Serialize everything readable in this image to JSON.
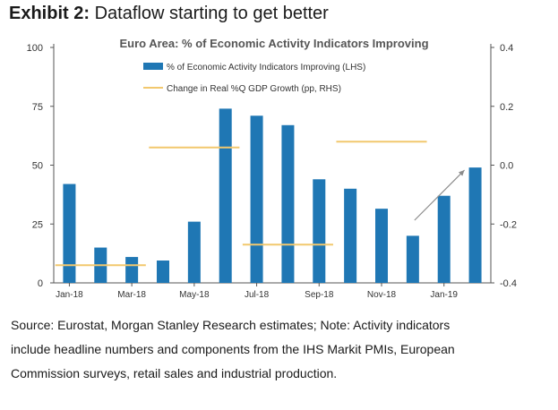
{
  "exhibit": {
    "label": "Exhibit 2",
    "separator": ":",
    "text": "Dataflow starting to get better"
  },
  "chart_data": {
    "type": "bar+line",
    "title": "Euro Area: % of Economic Activity Indicators Improving",
    "legend": {
      "position": "top-center",
      "bar_label": "% of Economic Activity Indicators Improving (LHS)",
      "line_label": "Change in Real %Q GDP Growth (pp, RHS)"
    },
    "bar_series": {
      "name": "% of Economic Activity Indicators Improving (LHS)",
      "axis": "left",
      "x": [
        "Jan-18",
        "Feb-18",
        "Mar-18",
        "Apr-18",
        "May-18",
        "Jun-18",
        "Jul-18",
        "Aug-18",
        "Sep-18",
        "Oct-18",
        "Nov-18",
        "Dec-18",
        "Jan-19",
        "Feb-19"
      ],
      "values": [
        42,
        15,
        11,
        9.5,
        26,
        74,
        71,
        67,
        44,
        40,
        31.5,
        20,
        37,
        49
      ]
    },
    "line_series": {
      "name": "Change in Real %Q GDP Growth (pp, RHS)",
      "axis": "right",
      "segments": [
        {
          "quarter": "Q1-18",
          "months": [
            "Jan-18",
            "Mar-18"
          ],
          "value": -0.34
        },
        {
          "quarter": "Q2-18",
          "months": [
            "Apr-18",
            "Jun-18"
          ],
          "value": 0.06
        },
        {
          "quarter": "Q3-18",
          "months": [
            "Jul-18",
            "Sep-18"
          ],
          "value": -0.27
        },
        {
          "quarter": "Q4-18",
          "months": [
            "Oct-18",
            "Dec-18"
          ],
          "value": 0.08
        }
      ]
    },
    "x_tick_labels": [
      "Jan-18",
      "Mar-18",
      "May-18",
      "Jul-18",
      "Sep-18",
      "Nov-18",
      "Jan-19"
    ],
    "left_axis": {
      "ylim": [
        0,
        100
      ],
      "ticks": [
        "0",
        "25",
        "50",
        "75",
        "100"
      ]
    },
    "right_axis": {
      "ylim": [
        -0.4,
        0.4
      ],
      "ticks": [
        "-0.4",
        "-0.2",
        "0.0",
        "0.2",
        "0.4"
      ]
    },
    "annotation": {
      "type": "arrow",
      "from": "Dec-18",
      "to": "Feb-19",
      "direction": "up"
    },
    "colors": {
      "bar": "#1f77b4",
      "line": "#f2c86e",
      "arrow": "#8c8c8c",
      "axis": "#555555"
    },
    "grid": false
  },
  "source_note": {
    "line1": "Source: Eurostat, Morgan Stanley Research estimates; Note: Activity indicators",
    "line2": "include headline numbers and components from the IHS Markit PMIs, European",
    "line3": "Commission surveys, retail sales and industrial production."
  }
}
